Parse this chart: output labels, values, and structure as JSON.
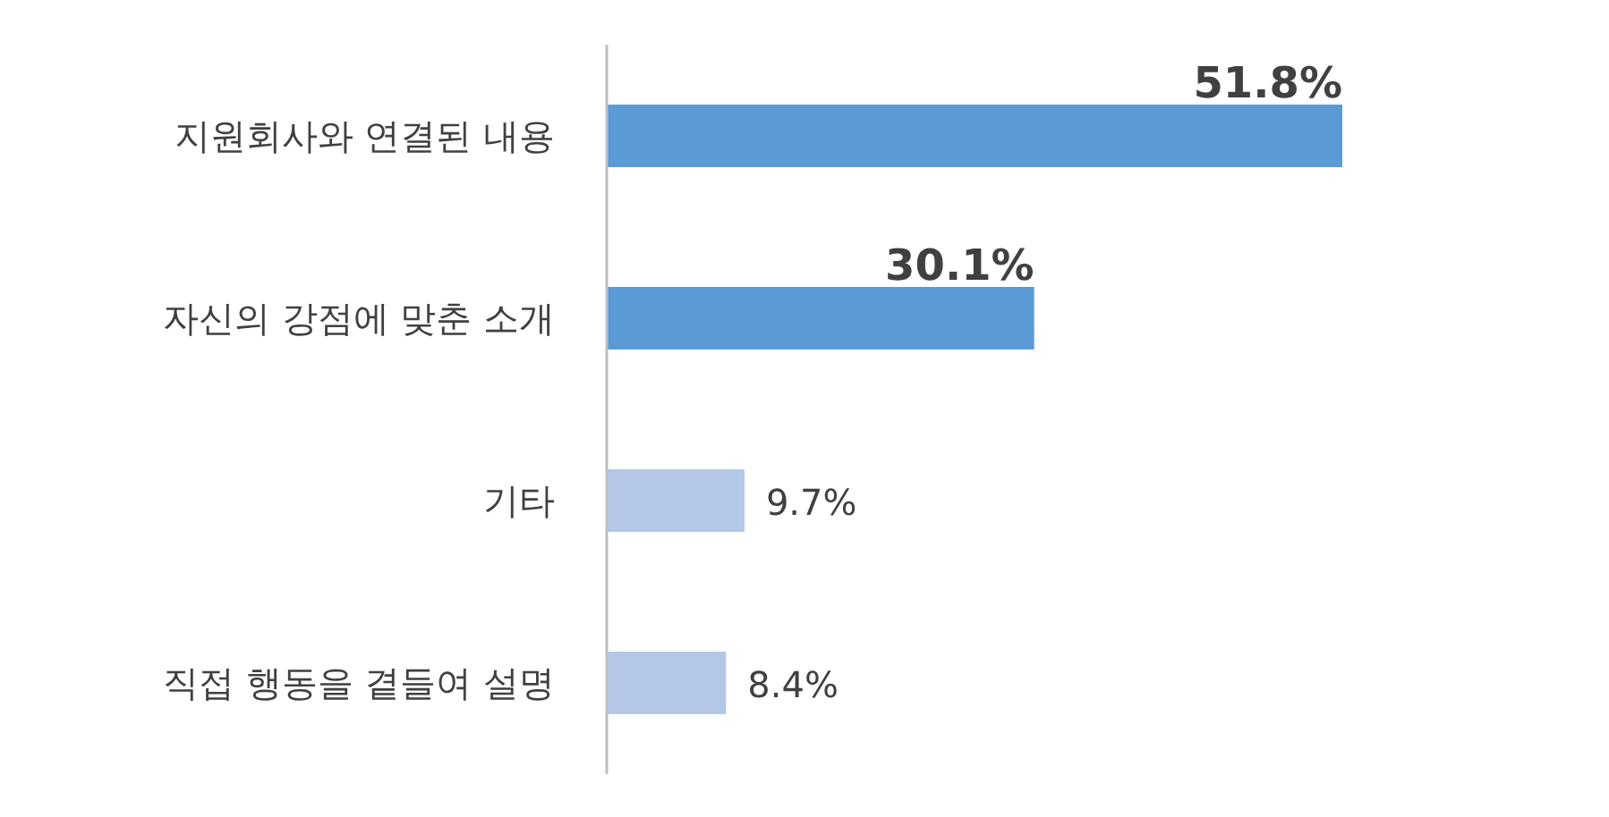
{
  "chart_data": {
    "type": "bar",
    "orientation": "horizontal",
    "categories": [
      "지원회사와 연결된 내용",
      "자신의 강점에 맞춘 소개",
      "기타",
      "직접 행동을 곁들여 설명"
    ],
    "values": [
      51.8,
      30.1,
      9.7,
      8.4
    ],
    "colors": [
      "#5b9bd5",
      "#5b9bd5",
      "#b4c7e7",
      "#b4c7e7"
    ],
    "value_labels": [
      "51.8%",
      "30.1%",
      "9.7%",
      "8.4%"
    ],
    "tick_labels": "y"
  }
}
